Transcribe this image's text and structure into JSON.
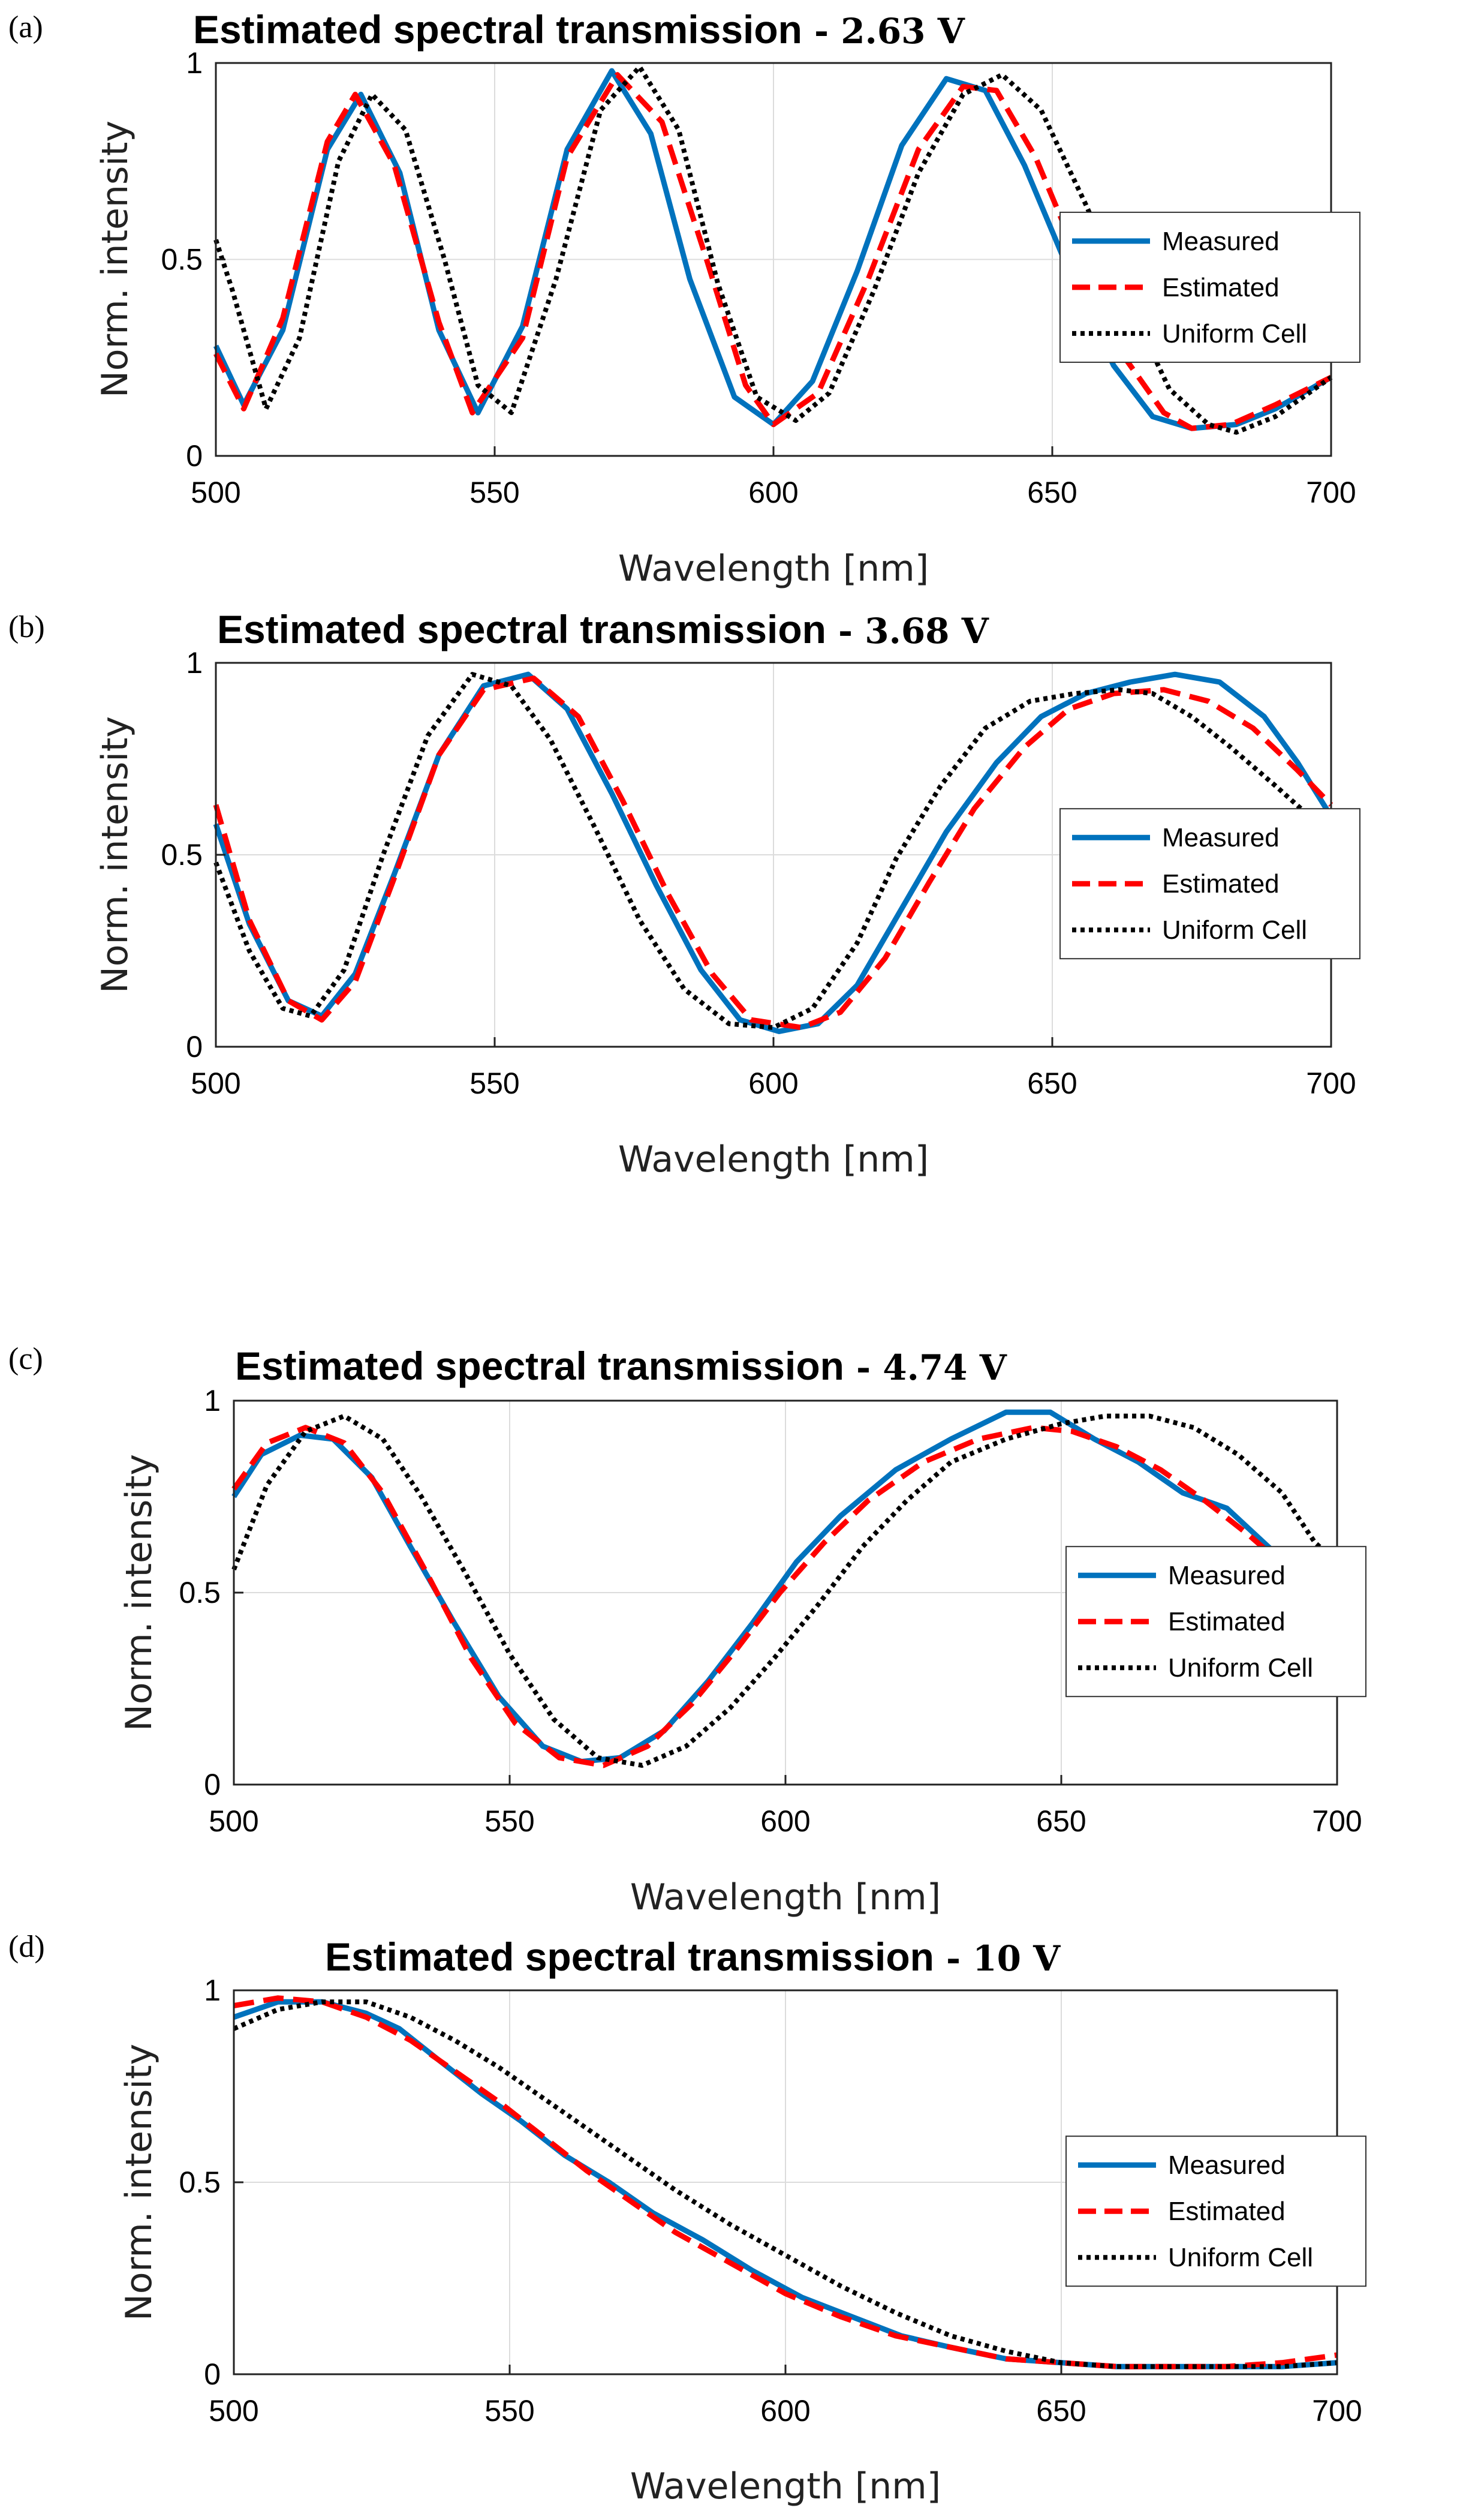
{
  "chart_data": [
    {
      "type": "line",
      "panel": "(a)",
      "title": "Estimated spectral transmission",
      "title_suffix": "- 2.63 V",
      "xlabel": "Wavelength [nm]",
      "ylabel": "Norm. intensity",
      "xlim": [
        500,
        700
      ],
      "ylim": [
        0,
        1
      ],
      "xticks": [
        500,
        550,
        600,
        650,
        700
      ],
      "yticks": [
        0,
        0.5,
        1
      ],
      "grid": true,
      "legend_position": "right",
      "series": [
        {
          "name": "Measured",
          "color": "#0072BD",
          "style": "solid",
          "x": [
            500,
            505,
            512,
            520,
            526,
            533,
            540,
            547,
            555,
            563,
            571,
            578,
            585,
            593,
            600,
            607,
            615,
            623,
            631,
            638,
            645,
            653,
            661,
            668,
            675,
            683,
            690,
            700
          ],
          "y": [
            0.28,
            0.13,
            0.32,
            0.78,
            0.92,
            0.72,
            0.32,
            0.11,
            0.33,
            0.78,
            0.98,
            0.82,
            0.45,
            0.15,
            0.08,
            0.19,
            0.47,
            0.79,
            0.96,
            0.93,
            0.74,
            0.47,
            0.23,
            0.1,
            0.07,
            0.08,
            0.12,
            0.2
          ]
        },
        {
          "name": "Estimated",
          "color": "#FF0000",
          "style": "dashed",
          "x": [
            500,
            505,
            512,
            520,
            525,
            532,
            540,
            546,
            555,
            563,
            572,
            580,
            588,
            595,
            600,
            608,
            617,
            626,
            634,
            640,
            647,
            655,
            663,
            670,
            675,
            682,
            690,
            700
          ],
          "y": [
            0.26,
            0.12,
            0.35,
            0.8,
            0.92,
            0.74,
            0.34,
            0.11,
            0.3,
            0.76,
            0.97,
            0.85,
            0.5,
            0.18,
            0.08,
            0.16,
            0.45,
            0.78,
            0.94,
            0.93,
            0.76,
            0.49,
            0.25,
            0.11,
            0.07,
            0.08,
            0.13,
            0.2
          ]
        },
        {
          "name": "Uniform Cell",
          "color": "#000000",
          "style": "dotted",
          "x": [
            500,
            503,
            509,
            515,
            522,
            528,
            534,
            541,
            547,
            553,
            561,
            569,
            576,
            583,
            590,
            597,
            604,
            610,
            618,
            626,
            634,
            641,
            648,
            656,
            664,
            671,
            678,
            683,
            690,
            700
          ],
          "y": [
            0.55,
            0.42,
            0.12,
            0.3,
            0.75,
            0.92,
            0.83,
            0.5,
            0.18,
            0.11,
            0.45,
            0.88,
            0.99,
            0.83,
            0.44,
            0.15,
            0.09,
            0.16,
            0.42,
            0.72,
            0.92,
            0.97,
            0.88,
            0.64,
            0.38,
            0.17,
            0.08,
            0.06,
            0.1,
            0.2
          ]
        }
      ]
    },
    {
      "type": "line",
      "panel": "(b)",
      "title": "Estimated spectral transmission",
      "title_suffix": "- 3.68 V",
      "xlabel": "Wavelength [nm]",
      "ylabel": "Norm. intensity",
      "xlim": [
        500,
        700
      ],
      "ylim": [
        0,
        1
      ],
      "xticks": [
        500,
        550,
        600,
        650,
        700
      ],
      "yticks": [
        0,
        0.5,
        1
      ],
      "grid": true,
      "legend_position": "right",
      "series": [
        {
          "name": "Measured",
          "color": "#0072BD",
          "style": "solid",
          "x": [
            500,
            506,
            513,
            519,
            525,
            532,
            540,
            548,
            556,
            563,
            571,
            579,
            587,
            594,
            601,
            608,
            615,
            623,
            631,
            640,
            648,
            656,
            664,
            672,
            680,
            688,
            694,
            700
          ],
          "y": [
            0.58,
            0.32,
            0.12,
            0.08,
            0.19,
            0.45,
            0.76,
            0.94,
            0.97,
            0.88,
            0.66,
            0.42,
            0.2,
            0.07,
            0.04,
            0.06,
            0.16,
            0.36,
            0.56,
            0.74,
            0.86,
            0.92,
            0.95,
            0.97,
            0.95,
            0.86,
            0.74,
            0.6
          ]
        },
        {
          "name": "Estimated",
          "color": "#FF0000",
          "style": "dashed",
          "x": [
            500,
            506,
            513,
            519,
            525,
            532,
            540,
            548,
            557,
            565,
            573,
            581,
            589,
            596,
            605,
            612,
            620,
            628,
            636,
            645,
            653,
            661,
            670,
            678,
            686,
            694,
            700
          ],
          "y": [
            0.63,
            0.33,
            0.12,
            0.07,
            0.17,
            0.44,
            0.76,
            0.93,
            0.96,
            0.86,
            0.64,
            0.4,
            0.19,
            0.07,
            0.05,
            0.09,
            0.23,
            0.43,
            0.62,
            0.78,
            0.88,
            0.92,
            0.93,
            0.9,
            0.83,
            0.72,
            0.63
          ]
        },
        {
          "name": "Uniform Cell",
          "color": "#000000",
          "style": "dotted",
          "x": [
            500,
            506,
            512,
            517,
            523,
            530,
            538,
            546,
            553,
            560,
            568,
            576,
            584,
            592,
            600,
            607,
            615,
            622,
            630,
            638,
            646,
            654,
            662,
            668,
            675,
            682,
            690,
            700
          ],
          "y": [
            0.48,
            0.25,
            0.1,
            0.08,
            0.2,
            0.5,
            0.81,
            0.97,
            0.94,
            0.8,
            0.57,
            0.33,
            0.15,
            0.06,
            0.05,
            0.1,
            0.27,
            0.49,
            0.68,
            0.83,
            0.9,
            0.92,
            0.93,
            0.92,
            0.86,
            0.78,
            0.68,
            0.55
          ]
        }
      ]
    },
    {
      "type": "line",
      "panel": "(c)",
      "title": "Estimated spectral transmission",
      "title_suffix": "- 4.74 V",
      "xlabel": "Wavelength [nm]",
      "ylabel": "Norm. intensity",
      "xlim": [
        500,
        700
      ],
      "ylim": [
        0,
        1
      ],
      "xticks": [
        500,
        550,
        600,
        650,
        700
      ],
      "yticks": [
        0,
        0.5,
        1
      ],
      "grid": true,
      "legend_position": "right",
      "series": [
        {
          "name": "Measured",
          "color": "#0072BD",
          "style": "solid",
          "x": [
            500,
            505,
            512,
            518,
            525,
            532,
            540,
            548,
            556,
            563,
            570,
            578,
            586,
            594,
            602,
            610,
            620,
            630,
            640,
            648,
            656,
            664,
            672,
            680,
            686,
            692,
            700
          ],
          "y": [
            0.75,
            0.86,
            0.91,
            0.9,
            0.8,
            0.62,
            0.42,
            0.23,
            0.1,
            0.06,
            0.07,
            0.14,
            0.27,
            0.42,
            0.58,
            0.7,
            0.82,
            0.9,
            0.97,
            0.97,
            0.9,
            0.84,
            0.76,
            0.72,
            0.64,
            0.56,
            0.5
          ]
        },
        {
          "name": "Estimated",
          "color": "#FF0000",
          "style": "dashed",
          "x": [
            500,
            506,
            513,
            520,
            527,
            535,
            543,
            551,
            559,
            567,
            575,
            583,
            591,
            599,
            607,
            615,
            625,
            635,
            645,
            652,
            660,
            668,
            676,
            684,
            692,
            700
          ],
          "y": [
            0.77,
            0.89,
            0.93,
            0.89,
            0.76,
            0.55,
            0.33,
            0.16,
            0.07,
            0.05,
            0.1,
            0.21,
            0.35,
            0.5,
            0.63,
            0.74,
            0.84,
            0.9,
            0.93,
            0.92,
            0.88,
            0.82,
            0.74,
            0.65,
            0.55,
            0.46
          ]
        },
        {
          "name": "Uniform Cell",
          "color": "#000000",
          "style": "dotted",
          "x": [
            500,
            506,
            513,
            520,
            527,
            534,
            542,
            550,
            558,
            566,
            574,
            582,
            590,
            598,
            606,
            614,
            622,
            630,
            640,
            650,
            658,
            666,
            674,
            682,
            690,
            696,
            700
          ],
          "y": [
            0.56,
            0.78,
            0.92,
            0.96,
            0.9,
            0.75,
            0.55,
            0.34,
            0.17,
            0.07,
            0.05,
            0.1,
            0.2,
            0.33,
            0.47,
            0.62,
            0.74,
            0.84,
            0.9,
            0.94,
            0.96,
            0.96,
            0.93,
            0.86,
            0.76,
            0.63,
            0.58
          ]
        }
      ]
    },
    {
      "type": "line",
      "panel": "(d)",
      "title": "Estimated spectral transmission",
      "title_suffix": "- 10 V",
      "xlabel": "Wavelength [nm]",
      "ylabel": "Norm. intensity",
      "xlim": [
        500,
        700
      ],
      "ylim": [
        0,
        1
      ],
      "xticks": [
        500,
        550,
        600,
        650,
        700
      ],
      "yticks": [
        0,
        0.5,
        1
      ],
      "grid": true,
      "legend_position": "right",
      "series": [
        {
          "name": "Measured",
          "color": "#0072BD",
          "style": "solid",
          "x": [
            500,
            508,
            516,
            524,
            530,
            537,
            545,
            552,
            560,
            568,
            576,
            585,
            594,
            603,
            612,
            621,
            630,
            640,
            650,
            660,
            670,
            680,
            690,
            700
          ],
          "y": [
            0.93,
            0.97,
            0.97,
            0.94,
            0.9,
            0.82,
            0.73,
            0.66,
            0.57,
            0.5,
            0.42,
            0.35,
            0.27,
            0.2,
            0.15,
            0.1,
            0.07,
            0.04,
            0.03,
            0.02,
            0.02,
            0.02,
            0.02,
            0.03
          ]
        },
        {
          "name": "Estimated",
          "color": "#FF0000",
          "style": "dashed",
          "x": [
            500,
            508,
            516,
            524,
            532,
            540,
            548,
            556,
            564,
            572,
            580,
            590,
            600,
            610,
            620,
            630,
            640,
            650,
            660,
            670,
            680,
            690,
            700
          ],
          "y": [
            0.96,
            0.98,
            0.97,
            0.93,
            0.87,
            0.79,
            0.71,
            0.62,
            0.53,
            0.45,
            0.37,
            0.29,
            0.21,
            0.15,
            0.1,
            0.07,
            0.04,
            0.03,
            0.02,
            0.02,
            0.02,
            0.03,
            0.05
          ]
        },
        {
          "name": "Uniform Cell",
          "color": "#000000",
          "style": "dotted",
          "x": [
            500,
            508,
            516,
            524,
            532,
            540,
            548,
            556,
            564,
            572,
            580,
            590,
            600,
            610,
            620,
            630,
            640,
            650,
            660,
            670,
            680,
            690,
            700
          ],
          "y": [
            0.9,
            0.95,
            0.97,
            0.97,
            0.93,
            0.87,
            0.8,
            0.72,
            0.64,
            0.56,
            0.48,
            0.39,
            0.31,
            0.23,
            0.16,
            0.1,
            0.06,
            0.03,
            0.02,
            0.02,
            0.02,
            0.02,
            0.03
          ]
        }
      ]
    }
  ]
}
